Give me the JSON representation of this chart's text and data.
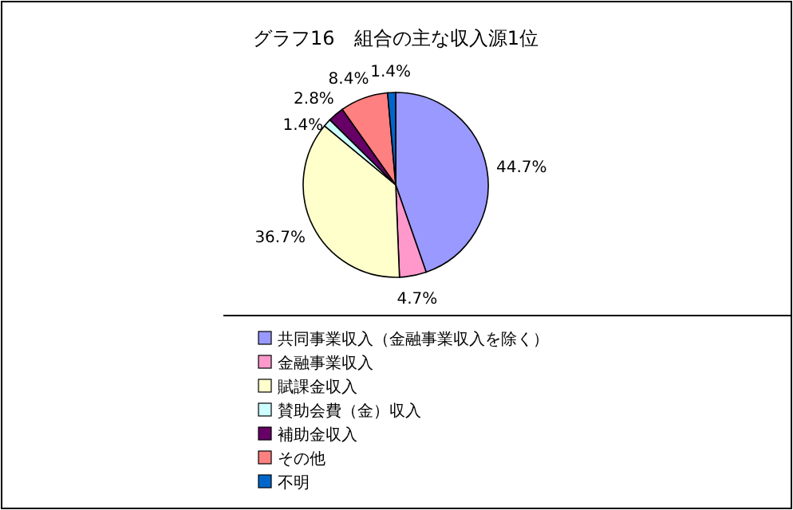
{
  "chart_data": {
    "type": "pie",
    "title": "グラフ16　組合の主な収入源1位",
    "categories": [
      "共同事業収入（金融事業収入を除く）",
      "金融事業収入",
      "賦課金収入",
      "賛助会費（金）収入",
      "補助金収入",
      "その他",
      "不明"
    ],
    "values": [
      44.7,
      4.7,
      36.7,
      1.4,
      2.8,
      8.4,
      1.4
    ],
    "colors": [
      "#9999ff",
      "#ff99cc",
      "#ffffcc",
      "#ccffff",
      "#660066",
      "#ff8080",
      "#0066cc"
    ],
    "value_labels": [
      "44.7%",
      "4.7%",
      "36.7%",
      "1.4%",
      "2.8%",
      "8.4%",
      "1.4%"
    ],
    "legend": "bottom"
  }
}
